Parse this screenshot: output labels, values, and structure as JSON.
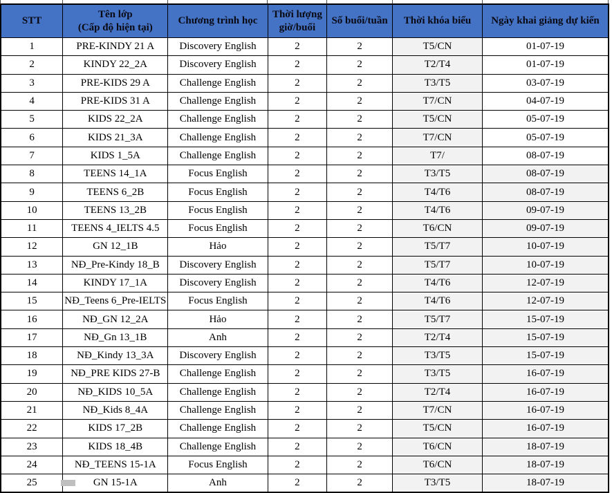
{
  "colors": {
    "header_bg": "#4472C4",
    "shaded_cell_bg": "#F2F2F2",
    "border": "#000000"
  },
  "table": {
    "columns": [
      {
        "label": "STT"
      },
      {
        "label": "Tên lớp\n(Cấp độ hiện tại)"
      },
      {
        "label": "Chương trình học"
      },
      {
        "label": "Thời lượng\ngiờ/buổi"
      },
      {
        "label": "Số buổi/tuần"
      },
      {
        "label": "Thời khóa biểu"
      },
      {
        "label": "Ngày khai giảng dự kiến"
      }
    ],
    "shading": {
      "schedule_col_all_rows": true,
      "date_col_from_stt": 8
    },
    "rows": [
      [
        "1",
        "PRE-KINDY 21 A",
        "Discovery English",
        "2",
        "2",
        "T5/CN",
        "01-07-19"
      ],
      [
        "2",
        "KINDY 22_2A",
        "Discovery English",
        "2",
        "2",
        "T2/T4",
        "01-07-19"
      ],
      [
        "3",
        "PRE-KIDS 29 A",
        "Challenge English",
        "2",
        "2",
        "T3/T5",
        "03-07-19"
      ],
      [
        "4",
        "PRE-KIDS 31 A",
        "Challenge English",
        "2",
        "2",
        "T7/CN",
        "04-07-19"
      ],
      [
        "5",
        "KIDS 22_2A",
        "Challenge English",
        "2",
        "2",
        "T5/CN",
        "05-07-19"
      ],
      [
        "6",
        "KIDS 21_3A",
        "Challenge English",
        "2",
        "2",
        "T7/CN",
        "05-07-19"
      ],
      [
        "7",
        "KIDS 1_5A",
        "Challenge English",
        "2",
        "2",
        "T7/",
        "08-07-19"
      ],
      [
        "8",
        "TEENS 14_1A",
        "Focus English",
        "2",
        "2",
        "T3/T5",
        "08-07-19"
      ],
      [
        "9",
        "TEENS 6_2B",
        "Focus English",
        "2",
        "2",
        "T4/T6",
        "08-07-19"
      ],
      [
        "10",
        "TEENS 13_2B",
        "Focus English",
        "2",
        "2",
        "T4/T6",
        "09-07-19"
      ],
      [
        "11",
        "TEENS 4_IELTS 4.5",
        "Focus English",
        "2",
        "2",
        "T6/CN",
        "09-07-19"
      ],
      [
        "12",
        "GN 12_1B",
        "Hảo",
        "2",
        "2",
        "T5/T7",
        "10-07-19"
      ],
      [
        "13",
        "NĐ_Pre-Kindy 18_B",
        "Discovery English",
        "2",
        "2",
        "T5/T7",
        "10-07-19"
      ],
      [
        "14",
        "KINDY 17_1A",
        "Discovery English",
        "2",
        "2",
        "T4/T6",
        "12-07-19"
      ],
      [
        "15",
        "NĐ_Teens 6_Pre-IELTS",
        "Focus English",
        "2",
        "2",
        "T4/T6",
        "12-07-19"
      ],
      [
        "16",
        "NĐ_GN 12_2A",
        "Hảo",
        "2",
        "2",
        "T5/T7",
        "15-07-19"
      ],
      [
        "17",
        "NĐ_Gn 13_1B",
        "Anh",
        "2",
        "2",
        "T2/T4",
        "15-07-19"
      ],
      [
        "18",
        "NĐ_Kindy 13_3A",
        "Discovery English",
        "2",
        "2",
        "T3/T5",
        "15-07-19"
      ],
      [
        "19",
        "NĐ_PRE KIDS 27-B",
        "Challenge English",
        "2",
        "2",
        "T3/T5",
        "16-07-19"
      ],
      [
        "20",
        "NĐ_KIDS 10_5A",
        "Challenge English",
        "2",
        "2",
        "T2/T4",
        "16-07-19"
      ],
      [
        "21",
        "NĐ_Kids 8_4A",
        "Challenge English",
        "2",
        "2",
        "T7/CN",
        "16-07-19"
      ],
      [
        "22",
        "KIDS 17_2B",
        "Challenge English",
        "2",
        "2",
        "T5/CN",
        "16-07-19"
      ],
      [
        "23",
        "KIDS 18_4B",
        "Challenge English",
        "2",
        "2",
        "T6/CN",
        "18-07-19"
      ],
      [
        "24",
        "NĐ_TEENS 15-1A",
        "Focus English",
        "2",
        "2",
        "T6/CN",
        "18-07-19"
      ],
      [
        "25",
        "GN 15-1A",
        "Anh",
        "2",
        "2",
        "T3/T5",
        "18-07-19"
      ]
    ]
  }
}
